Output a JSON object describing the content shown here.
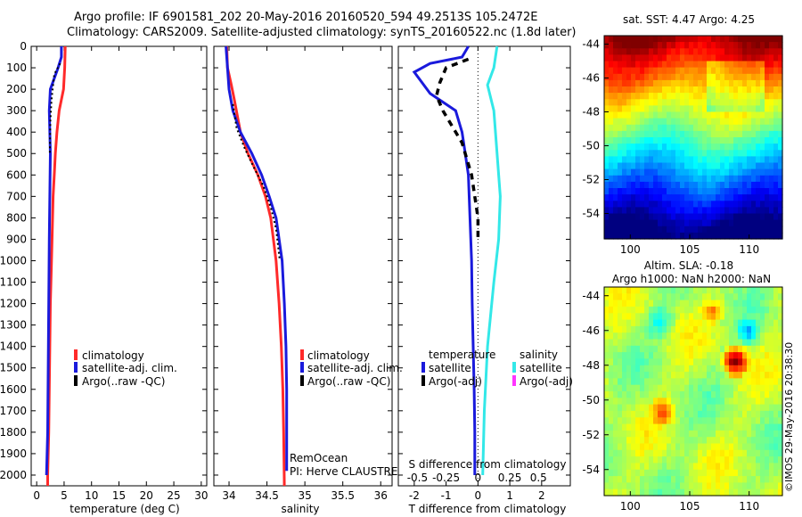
{
  "header": {
    "line1": "Argo profile: IF 6901581_202 20-May-2016 20160520_594 49.2513S 105.2472E",
    "line2": "Climatology: CARS2009. Satellite-adjusted climatology: synTS_20160522.nc (1.8d later)"
  },
  "colors": {
    "climatology": "#ff2a2a",
    "satellite": "#1a1adc",
    "argo": "#000000",
    "sat_salinity": "#33e8e8",
    "argo_adj_salinity": "#ff33ff"
  },
  "chart_data": [
    {
      "type": "line",
      "panel": "temperature",
      "xlabel": "temperature (deg C)",
      "ylabel": "",
      "xlim": [
        -1,
        31
      ],
      "ylim": [
        2050,
        0
      ],
      "xticks": [
        0,
        5,
        10,
        15,
        20,
        25,
        30
      ],
      "yticks": [
        0,
        100,
        200,
        300,
        400,
        500,
        600,
        700,
        800,
        900,
        1000,
        1100,
        1200,
        1300,
        1400,
        1500,
        1600,
        1700,
        1800,
        1900,
        2000
      ],
      "legend": [
        "climatology",
        "satellite-adj. clim.",
        "Argo(..raw -QC)"
      ],
      "series": [
        {
          "name": "climatology",
          "points": [
            [
              5.2,
              0
            ],
            [
              5.1,
              100
            ],
            [
              4.9,
              200
            ],
            [
              4.1,
              300
            ],
            [
              3.7,
              400
            ],
            [
              3.4,
              500
            ],
            [
              3.2,
              600
            ],
            [
              3.0,
              700
            ],
            [
              2.9,
              800
            ],
            [
              2.7,
              1000
            ],
            [
              2.5,
              1200
            ],
            [
              2.4,
              1400
            ],
            [
              2.3,
              1600
            ],
            [
              2.2,
              1800
            ],
            [
              2.0,
              2000
            ],
            [
              2.0,
              2050
            ]
          ]
        },
        {
          "name": "satellite-adj. clim.",
          "points": [
            [
              4.5,
              0
            ],
            [
              4.5,
              50
            ],
            [
              3.9,
              100
            ],
            [
              2.5,
              200
            ],
            [
              2.3,
              300
            ],
            [
              2.4,
              400
            ],
            [
              2.5,
              500
            ],
            [
              2.4,
              700
            ],
            [
              2.3,
              900
            ],
            [
              2.2,
              1200
            ],
            [
              2.1,
              1500
            ],
            [
              2.0,
              1800
            ],
            [
              1.8,
              2000
            ]
          ]
        },
        {
          "name": "Argo(..raw -QC)",
          "points": [
            [
              4.3,
              80
            ],
            [
              3.2,
              130
            ],
            [
              3.0,
              180
            ],
            [
              2.7,
              250
            ],
            [
              2.5,
              350
            ],
            [
              2.4,
              500
            ]
          ]
        }
      ]
    },
    {
      "type": "line",
      "panel": "salinity",
      "xlabel": "salinity",
      "xlim": [
        33.8,
        36.15
      ],
      "ylim": [
        2050,
        0
      ],
      "xticks": [
        34,
        34.5,
        35,
        35.5,
        36
      ],
      "legend": [
        "climatology",
        "satellite-adj. clim.",
        "Argo(..raw -QC)"
      ],
      "annotation": [
        "RemOcean",
        "PI: Herve CLAUSTRE"
      ],
      "series": [
        {
          "name": "climatology",
          "points": [
            [
              33.97,
              0
            ],
            [
              33.98,
              100
            ],
            [
              34.03,
              180
            ],
            [
              34.07,
              250
            ],
            [
              34.15,
              400
            ],
            [
              34.25,
              500
            ],
            [
              34.38,
              600
            ],
            [
              34.48,
              700
            ],
            [
              34.55,
              800
            ],
            [
              34.62,
              1000
            ],
            [
              34.66,
              1200
            ],
            [
              34.69,
              1400
            ],
            [
              34.71,
              1600
            ],
            [
              34.72,
              1800
            ],
            [
              34.73,
              2050
            ]
          ]
        },
        {
          "name": "satellite-adj. clim.",
          "points": [
            [
              33.96,
              0
            ],
            [
              33.98,
              100
            ],
            [
              34.0,
              200
            ],
            [
              34.05,
              300
            ],
            [
              34.15,
              400
            ],
            [
              34.3,
              500
            ],
            [
              34.43,
              600
            ],
            [
              34.53,
              700
            ],
            [
              34.62,
              800
            ],
            [
              34.7,
              1000
            ],
            [
              34.73,
              1200
            ],
            [
              34.75,
              1400
            ],
            [
              34.76,
              1600
            ],
            [
              34.76,
              1800
            ],
            [
              34.76,
              1980
            ]
          ]
        },
        {
          "name": "Argo(..raw -QC)",
          "points": [
            [
              34.05,
              270
            ],
            [
              34.1,
              380
            ],
            [
              34.2,
              470
            ],
            [
              34.32,
              560
            ],
            [
              34.45,
              650
            ],
            [
              34.55,
              750
            ],
            [
              34.62,
              850
            ],
            [
              34.67,
              1000
            ]
          ]
        }
      ]
    },
    {
      "type": "line",
      "panel": "difference",
      "xlabel": "T difference from climatology",
      "x2label": "S difference from climatology",
      "xlim": [
        -2.5,
        2.9
      ],
      "ylim": [
        2050,
        0
      ],
      "xticks": [
        -2,
        -1,
        0,
        1,
        2
      ],
      "x2ticks": [
        "-0.5",
        "-0.25",
        "0",
        "0.25",
        "0.5"
      ],
      "legend": {
        "temperature": [
          "temperature",
          "satellite",
          "Argo(-adj)"
        ],
        "salinity": [
          "salinity",
          "satellite",
          "Argo(-adj)"
        ]
      },
      "series": [
        {
          "name": "satellite",
          "group": "temperature",
          "points": [
            [
              -0.3,
              0
            ],
            [
              -0.5,
              50
            ],
            [
              -1.5,
              80
            ],
            [
              -2.0,
              120
            ],
            [
              -1.5,
              220
            ],
            [
              -0.7,
              300
            ],
            [
              -0.5,
              400
            ],
            [
              -0.4,
              500
            ],
            [
              -0.3,
              600
            ],
            [
              -0.25,
              800
            ],
            [
              -0.2,
              1000
            ],
            [
              -0.18,
              1200
            ],
            [
              -0.15,
              1400
            ],
            [
              -0.12,
              1600
            ],
            [
              -0.1,
              1800
            ],
            [
              -0.1,
              2000
            ]
          ]
        },
        {
          "name": "Argo(-adj)",
          "group": "temperature",
          "points": [
            [
              -0.3,
              60
            ],
            [
              -1.0,
              100
            ],
            [
              -1.2,
              170
            ],
            [
              -1.3,
              230
            ],
            [
              -1.1,
              300
            ],
            [
              -0.5,
              450
            ],
            [
              -0.2,
              600
            ],
            [
              0.0,
              800
            ],
            [
              0.0,
              900
            ]
          ]
        },
        {
          "name": "satellite",
          "group": "salinity",
          "points": [
            [
              0.6,
              0
            ],
            [
              0.5,
              100
            ],
            [
              0.3,
              180
            ],
            [
              0.5,
              300
            ],
            [
              0.6,
              500
            ],
            [
              0.7,
              700
            ],
            [
              0.65,
              900
            ],
            [
              0.5,
              1100
            ],
            [
              0.3,
              1400
            ],
            [
              0.2,
              1700
            ],
            [
              0.15,
              2000
            ]
          ]
        }
      ]
    },
    {
      "type": "heatmap",
      "panel": "sst-map",
      "title": "sat. SST: 4.47 Argo: 4.25",
      "xticks": [
        100,
        105,
        110
      ],
      "yticks": [
        -44,
        -46,
        -48,
        -50,
        -52,
        -54
      ],
      "xlim": [
        97.8,
        112.8
      ],
      "ylim": [
        -55.5,
        -43.5
      ]
    },
    {
      "type": "heatmap",
      "panel": "sla-map",
      "title": "Altim. SLA: -0.18",
      "subtitle": "Argo h1000: NaN h2000: NaN",
      "xticks": [
        100,
        105,
        110
      ],
      "yticks": [
        -44,
        -46,
        -48,
        -50,
        -52,
        -54
      ],
      "xlim": [
        97.8,
        112.8
      ],
      "ylim": [
        -55.5,
        -43.5
      ]
    }
  ],
  "watermark": "©IMOS 29-May-2016 20:38:30"
}
